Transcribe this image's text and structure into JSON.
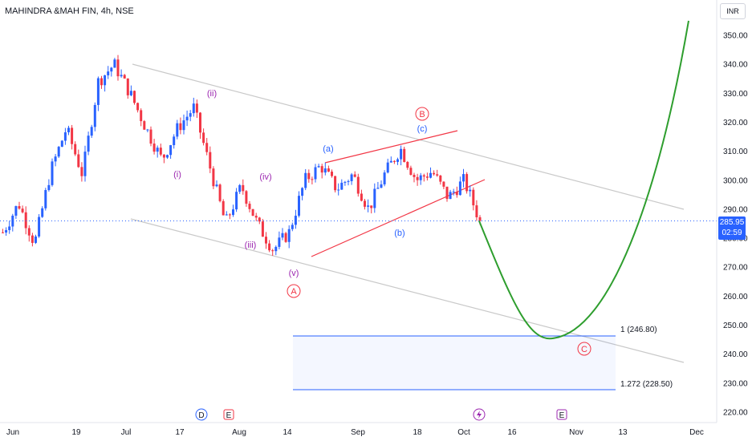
{
  "header": {
    "title": "MAHINDRA &MAH FIN, 4h, NSE",
    "currency": "INR"
  },
  "price_axis": {
    "ticks": [
      "350.00",
      "340.00",
      "330.00",
      "320.00",
      "310.00",
      "300.00",
      "290.00",
      "280.00",
      "270.00",
      "260.00",
      "250.00",
      "240.00",
      "230.00",
      "220.00"
    ],
    "current_price": "285.95",
    "countdown": "02:59"
  },
  "time_axis": {
    "ticks": [
      "Jun",
      "19",
      "Jul",
      "17",
      "Aug",
      "14",
      "Sep",
      "18",
      "Oct",
      "16",
      "Nov",
      "13",
      "Dec"
    ]
  },
  "colors": {
    "up": "#2962ff",
    "down": "#f23645",
    "projection": "#2e9e2e",
    "purple_labels": "#9c27b0",
    "channel": "#c9c9c9"
  },
  "annotations": {
    "wave_labels": [
      "(i)",
      "(ii)",
      "(iii)",
      "(iv)",
      "(v)",
      "A",
      "(a)",
      "(b)",
      "(c)",
      "B",
      "C"
    ],
    "fib_levels": [
      "1 (246.80)",
      "1.272 (228.50)"
    ],
    "event_markers": [
      "D",
      "E",
      "E"
    ]
  },
  "chart_data": {
    "type": "candlestick",
    "title": "MAHINDRA &MAH FIN, 4h, NSE",
    "ylim": [
      217,
      356
    ],
    "y_ticks": [
      350,
      340,
      330,
      320,
      310,
      300,
      290,
      280,
      270,
      260,
      250,
      240,
      230,
      220
    ],
    "anchors": [
      {
        "date": "Jun",
        "price": 282
      },
      {
        "date": "Jun",
        "price": 292
      },
      {
        "date": "Jun",
        "price": 278
      },
      {
        "date": "19",
        "price": 303
      },
      {
        "date": "19",
        "price": 318
      },
      {
        "date": "19",
        "price": 302
      },
      {
        "date": "Jul",
        "price": 334
      },
      {
        "date": "Jul",
        "price": 340
      },
      {
        "date": "Jul",
        "price": 330
      },
      {
        "date": "17",
        "price": 318
      },
      {
        "date": "17",
        "price": 307
      },
      {
        "date": "17",
        "price": 318
      },
      {
        "date": "17",
        "price": 325
      },
      {
        "date": "Aug",
        "price": 305
      },
      {
        "date": "Aug",
        "price": 285
      },
      {
        "date": "Aug",
        "price": 298
      },
      {
        "date": "14",
        "price": 285
      },
      {
        "date": "14",
        "price": 276
      },
      {
        "date": "14",
        "price": 282
      },
      {
        "date": "14",
        "price": 300
      },
      {
        "date": "14",
        "price": 305
      },
      {
        "date": "Sep",
        "price": 297
      },
      {
        "date": "Sep",
        "price": 302
      },
      {
        "date": "Sep",
        "price": 290
      },
      {
        "date": "18",
        "price": 302
      },
      {
        "date": "18",
        "price": 311
      },
      {
        "date": "18",
        "price": 300
      },
      {
        "date": "18",
        "price": 303
      },
      {
        "date": "Oct",
        "price": 294
      },
      {
        "date": "Oct",
        "price": 300
      },
      {
        "date": "Oct",
        "price": 285.95
      }
    ],
    "current_price": 285.95,
    "projection": {
      "start": 285.95,
      "low": 245.5,
      "end": 355
    },
    "fib_levels": [
      {
        "ratio": 1,
        "price": 246.8
      },
      {
        "ratio": 1.272,
        "price": 228.5
      }
    ]
  }
}
